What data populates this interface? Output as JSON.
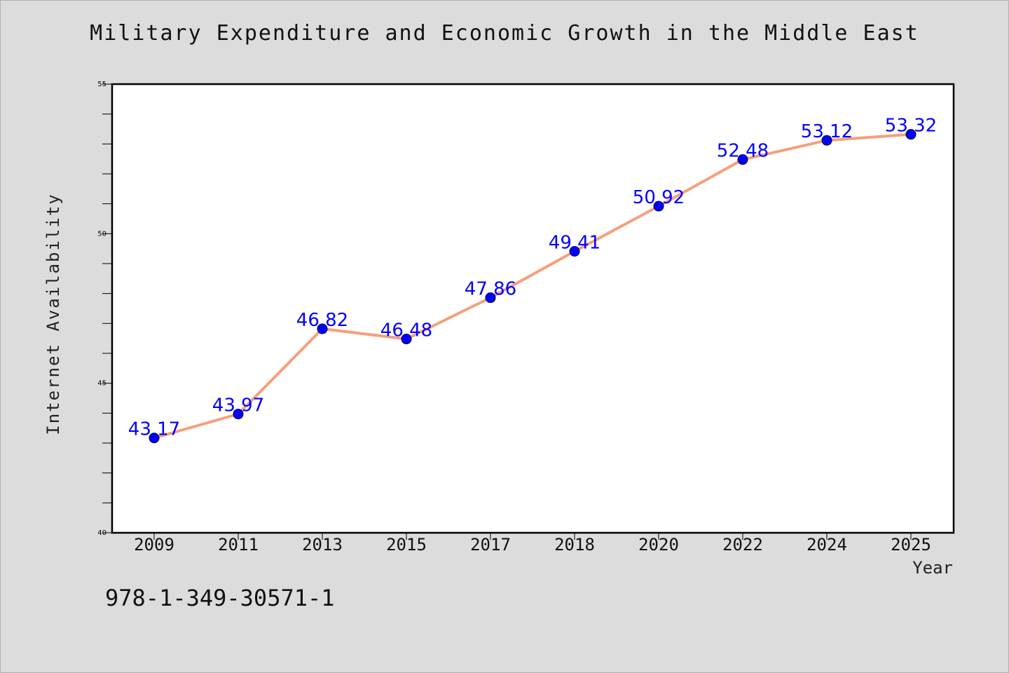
{
  "chart_data": {
    "type": "line",
    "title": "Military Expenditure and Economic Growth in the Middle East",
    "xlabel": "Year",
    "ylabel": "Internet Availability",
    "categories": [
      "2009",
      "2011",
      "2013",
      "2015",
      "2017",
      "2018",
      "2020",
      "2022",
      "2024",
      "2025"
    ],
    "series": [
      {
        "values": [
          43.17,
          43.97,
          46.82,
          46.48,
          47.86,
          49.41,
          50.92,
          52.48,
          53.12,
          53.32
        ]
      }
    ],
    "data_labels": [
      "43.17",
      "43.97",
      "46.82",
      "46.48",
      "47.86",
      "49.41",
      "50.92",
      "52.48",
      "53.12",
      "53.32"
    ],
    "ylim": [
      40,
      55
    ],
    "y_major_ticks": [
      40,
      45,
      50,
      55
    ],
    "y_minor_step": 1,
    "grid": false,
    "legend": "none",
    "colors": {
      "line": "#f4a07c",
      "marker": "#0000ff",
      "label": "#0000ff",
      "plot_bg": "#ffffff"
    }
  },
  "footer": {
    "code": "978-1-349-30571-1"
  }
}
